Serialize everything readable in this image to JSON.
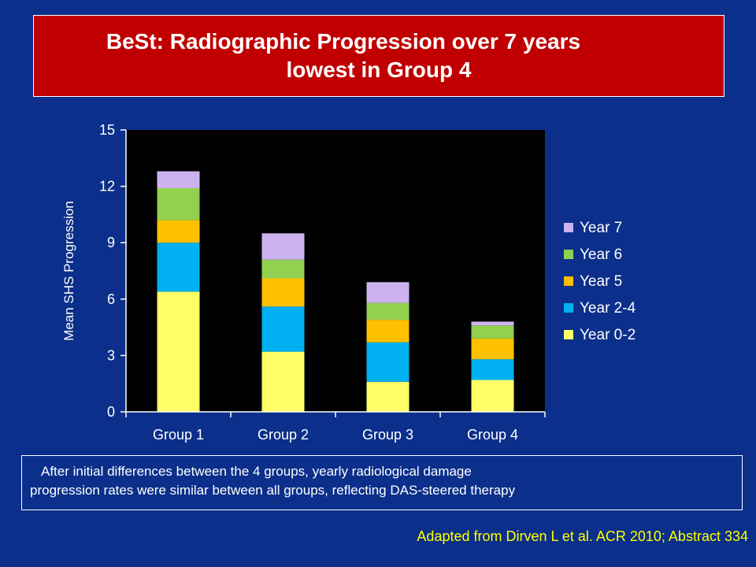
{
  "header": {
    "title_line1": "BeSt: Radiographic Progression over 7 years",
    "title_line2": "lowest in Group 4"
  },
  "chart_data": {
    "type": "bar",
    "stacked": true,
    "categories": [
      "Group 1",
      "Group 2",
      "Group 3",
      "Group 4"
    ],
    "series": [
      {
        "name": "Year 0-2",
        "color": "#ffff66",
        "values": [
          6.4,
          3.2,
          1.6,
          1.7
        ]
      },
      {
        "name": "Year 2-4",
        "color": "#00b0f0",
        "values": [
          2.6,
          2.4,
          2.1,
          1.1
        ]
      },
      {
        "name": "Year 5",
        "color": "#ffc000",
        "values": [
          1.2,
          1.5,
          1.2,
          1.1
        ]
      },
      {
        "name": "Year 6",
        "color": "#92d050",
        "values": [
          1.7,
          1.0,
          0.9,
          0.7
        ]
      },
      {
        "name": "Year 7",
        "color": "#ccb3f0",
        "values": [
          0.9,
          1.4,
          1.1,
          0.2
        ]
      }
    ],
    "ylabel": "Mean SHS Progression",
    "ylim": [
      0,
      15
    ],
    "yticks": [
      0,
      3,
      6,
      9,
      12,
      15
    ],
    "grid": false,
    "plot_background": "#000000",
    "legend_position": "right",
    "legend_order": [
      "Year 7",
      "Year 6",
      "Year 5",
      "Year 2-4",
      "Year 0-2"
    ]
  },
  "note": {
    "line1": "After initial differences between the 4 groups, yearly radiological damage",
    "line2": "progression rates were similar between all groups, reflecting DAS-steered therapy"
  },
  "citation": "Adapted from Dirven L et al. ACR 2010; Abstract 334"
}
